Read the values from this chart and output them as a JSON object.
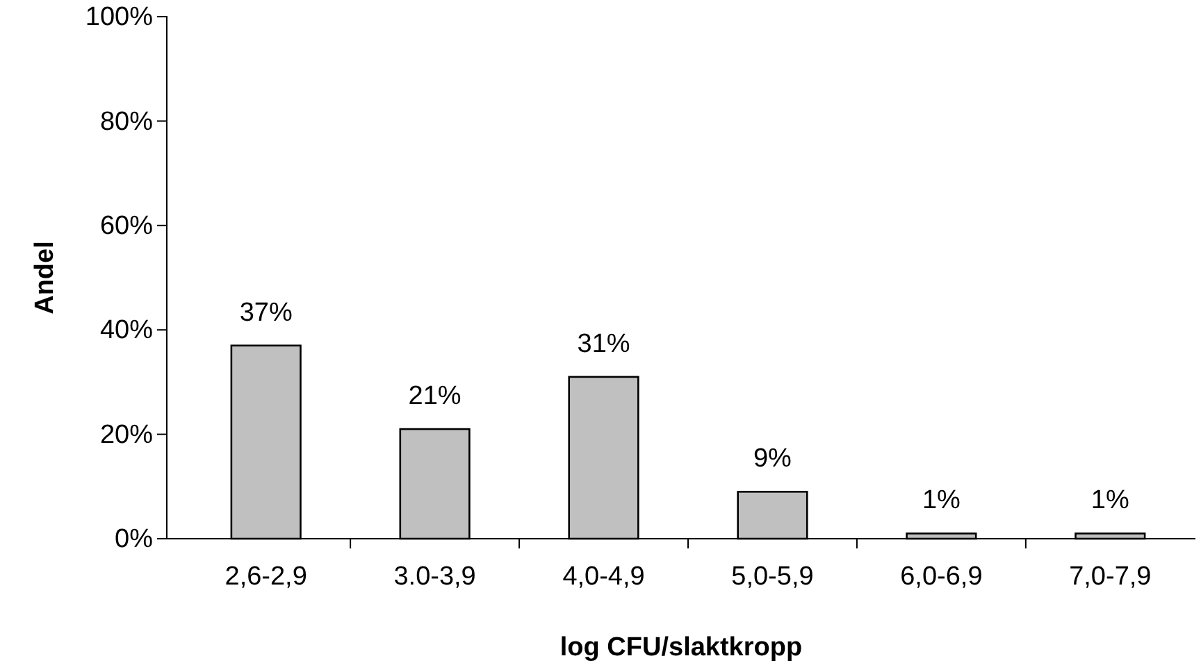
{
  "chart_data": {
    "type": "bar",
    "xlabel": "log CFU/slaktkropp",
    "ylabel": "Andel",
    "categories": [
      "2,6-2,9",
      "3.0-3,9",
      "4,0-4,9",
      "5,0-5,9",
      "6,0-6,9",
      "7,0-7,9"
    ],
    "values": [
      37,
      21,
      31,
      9,
      1,
      1
    ],
    "value_labels": [
      "37%",
      "21%",
      "31%",
      "9%",
      "1%",
      "1%"
    ],
    "color": "#c0c0c0",
    "ylim": [
      0,
      100
    ],
    "yticks": [
      {
        "value": 0,
        "label": "0%"
      },
      {
        "value": 20,
        "label": "20%"
      },
      {
        "value": 40,
        "label": "40%"
      },
      {
        "value": 60,
        "label": "60%"
      },
      {
        "value": 80,
        "label": "80%"
      },
      {
        "value": 100,
        "label": "100%"
      }
    ],
    "grid": false
  }
}
